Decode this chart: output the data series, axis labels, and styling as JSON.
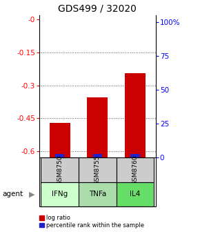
{
  "title": "GDS499 / 32020",
  "samples": [
    "GSM8750",
    "GSM8755",
    "GSM8760"
  ],
  "agents": [
    "IFNg",
    "TNFa",
    "IL4"
  ],
  "log_ratios": [
    -0.47,
    -0.355,
    -0.245
  ],
  "left_ylim": [
    -0.63,
    0.02
  ],
  "left_yticks": [
    0,
    -0.15,
    -0.3,
    -0.45,
    -0.6
  ],
  "left_ytick_labels": [
    "-0",
    "-0.15",
    "-0.3",
    "-0.45",
    "-0.6"
  ],
  "right_yticks": [
    0,
    25,
    50,
    75,
    100
  ],
  "right_ytick_labels": [
    "0",
    "25",
    "50",
    "75",
    "100%"
  ],
  "bar_color_red": "#cc0000",
  "bar_color_blue": "#2222cc",
  "sample_bg": "#cccccc",
  "agent_bg_ifng": "#ccffcc",
  "agent_bg_tnfa": "#aaddaa",
  "agent_bg_il4": "#66dd66",
  "legend_red": "log ratio",
  "legend_blue": "percentile rank within the sample",
  "agent_label": "agent",
  "bar_width": 0.55,
  "blue_bar_height": 0.018,
  "grid_color": "#555555",
  "title_fontsize": 10,
  "tick_fontsize": 7.5,
  "label_fontsize": 8
}
